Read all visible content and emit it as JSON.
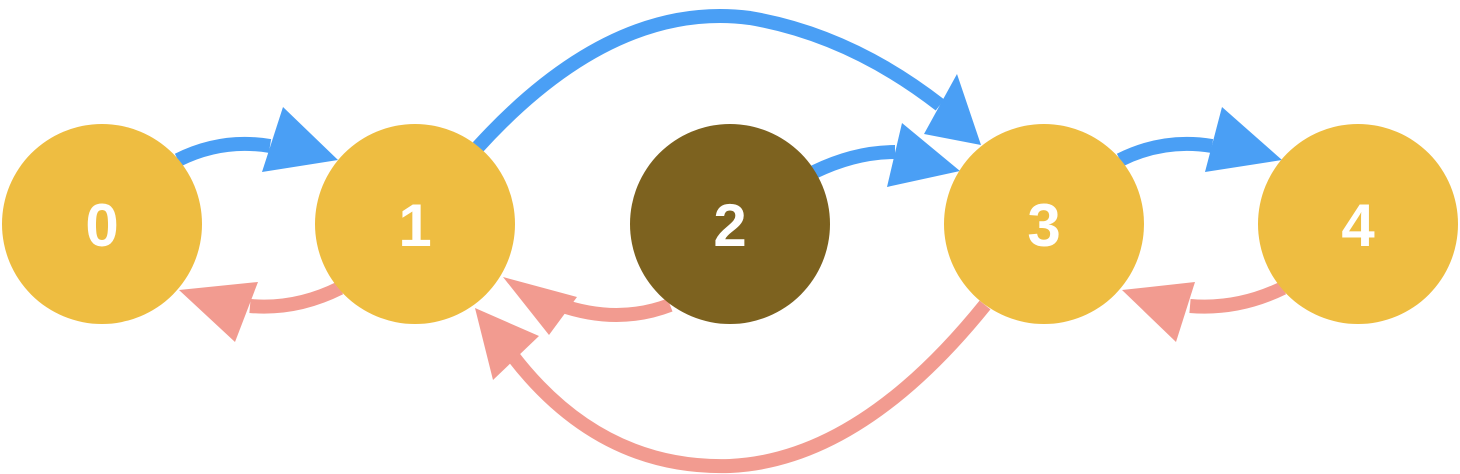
{
  "colors": {
    "forward_edge": "#4a9ff5",
    "backward_edge": "#f29b90",
    "node_default": "#eebd41",
    "node_highlight": "#7d621f",
    "label": "#ffffff"
  },
  "nodes": [
    {
      "id": "0",
      "label": "0",
      "highlight": false
    },
    {
      "id": "1",
      "label": "1",
      "highlight": false
    },
    {
      "id": "2",
      "label": "2",
      "highlight": true
    },
    {
      "id": "3",
      "label": "3",
      "highlight": false
    },
    {
      "id": "4",
      "label": "4",
      "highlight": false
    }
  ],
  "edges": [
    {
      "from": "0",
      "to": "1",
      "kind": "forward"
    },
    {
      "from": "1",
      "to": "0",
      "kind": "backward"
    },
    {
      "from": "1",
      "to": "3",
      "kind": "forward"
    },
    {
      "from": "3",
      "to": "1",
      "kind": "backward"
    },
    {
      "from": "2",
      "to": "3",
      "kind": "forward"
    },
    {
      "from": "2",
      "to": "1",
      "kind": "backward"
    },
    {
      "from": "3",
      "to": "4",
      "kind": "forward"
    },
    {
      "from": "4",
      "to": "3",
      "kind": "backward"
    }
  ]
}
